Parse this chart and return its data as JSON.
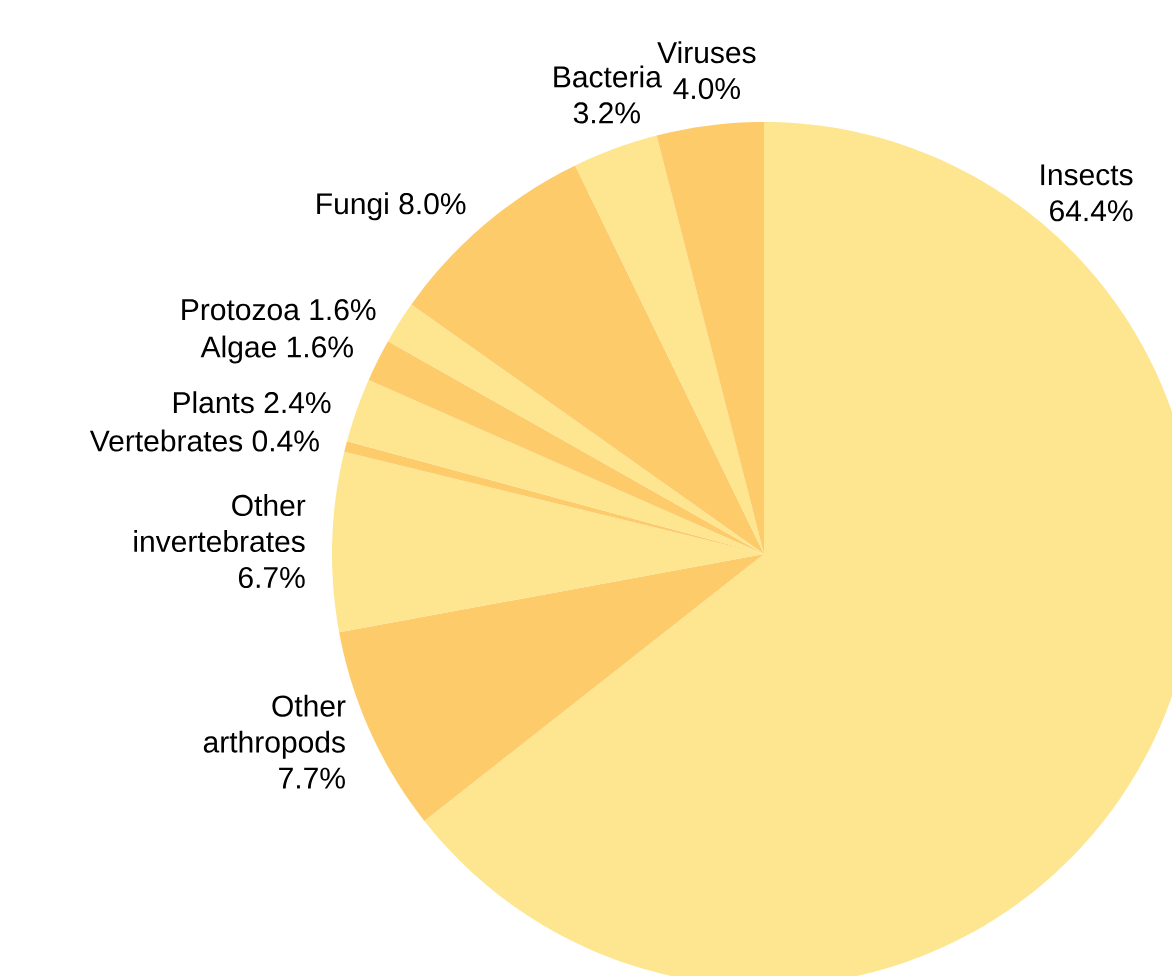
{
  "chart_data": {
    "type": "pie",
    "categories": [
      "Insects",
      "Other arthropods",
      "Other invertebrates",
      "Vertebrates",
      "Plants",
      "Algae",
      "Protozoa",
      "Fungi",
      "Bacteria",
      "Viruses"
    ],
    "values": [
      64.4,
      7.7,
      6.7,
      0.4,
      2.4,
      1.6,
      1.6,
      8.0,
      3.2,
      4.0
    ],
    "value_labels": [
      "64.4%",
      "7.7%",
      "6.7%",
      "0.4%",
      "2.4%",
      "1.6%",
      "1.6%",
      "8.0%",
      "3.2%",
      "4.0%"
    ],
    "colors": [
      "#fde68f",
      "#fdcb6a",
      "#fde68f",
      "#fdcb6a",
      "#fde68f",
      "#fdcb6a",
      "#fde68f",
      "#fdcb6a",
      "#fde68f",
      "#fdcb6a"
    ]
  }
}
